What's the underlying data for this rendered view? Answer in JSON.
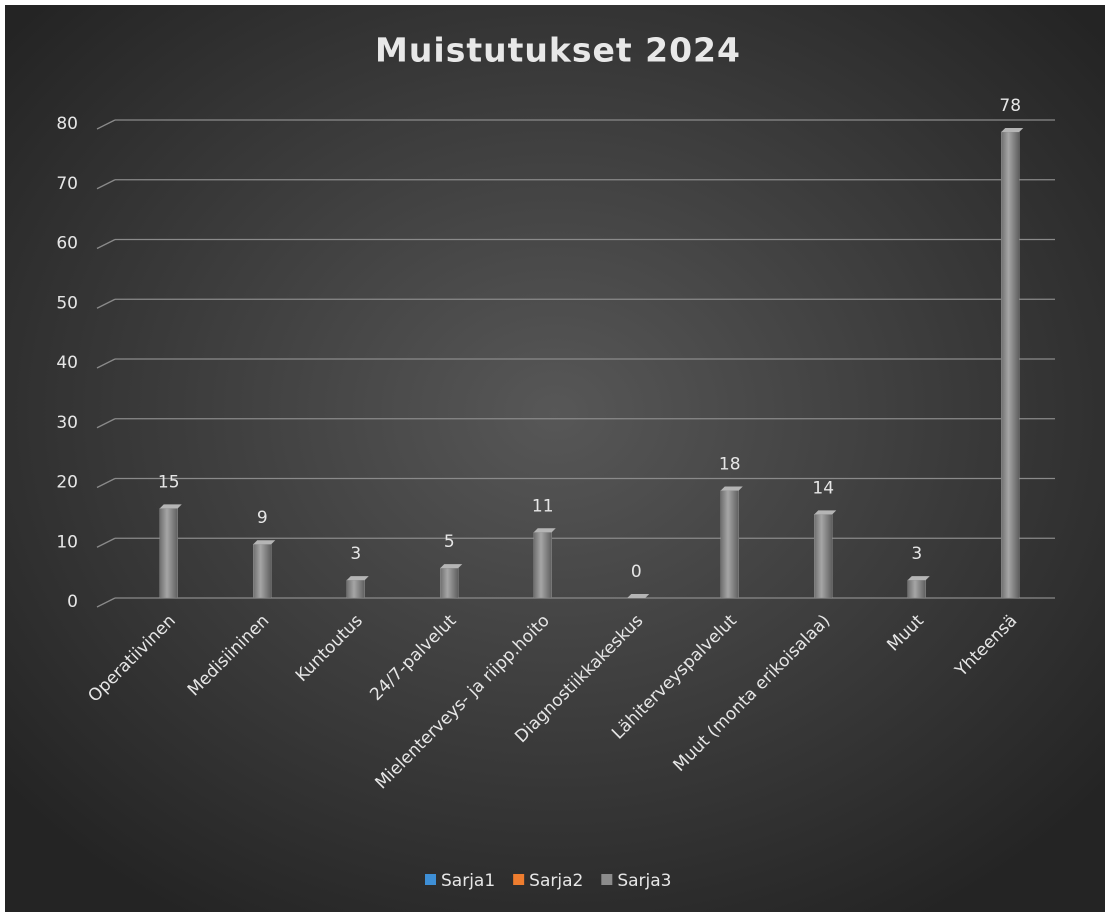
{
  "chart_data": {
    "type": "bar",
    "title": "Muistutukset 2024",
    "categories": [
      "Operatiivinen",
      "Medisiininen",
      "Kuntoutus",
      "24/7-palvelut",
      "Mielenterveys- ja riipp.hoito",
      "Diagnostiikkakeskus",
      "Lähiterveyspalvelut",
      "Muut (monta erikoisalaa)",
      "Muut",
      "Yhteensä"
    ],
    "series": [
      {
        "name": "Sarja1",
        "color": "#3e8fd6",
        "values": [
          null,
          null,
          null,
          null,
          null,
          null,
          null,
          null,
          null,
          null
        ]
      },
      {
        "name": "Sarja2",
        "color": "#ee7d2f",
        "values": [
          null,
          null,
          null,
          null,
          null,
          null,
          null,
          null,
          null,
          null
        ]
      },
      {
        "name": "Sarja3",
        "color": "#8c8c8c",
        "values": [
          15,
          9,
          3,
          5,
          11,
          0,
          18,
          14,
          3,
          78
        ]
      }
    ],
    "ylim": [
      0,
      80
    ],
    "yticks": [
      0,
      10,
      20,
      30,
      40,
      50,
      60,
      70,
      80
    ],
    "grid": true,
    "legend": "bottom"
  }
}
